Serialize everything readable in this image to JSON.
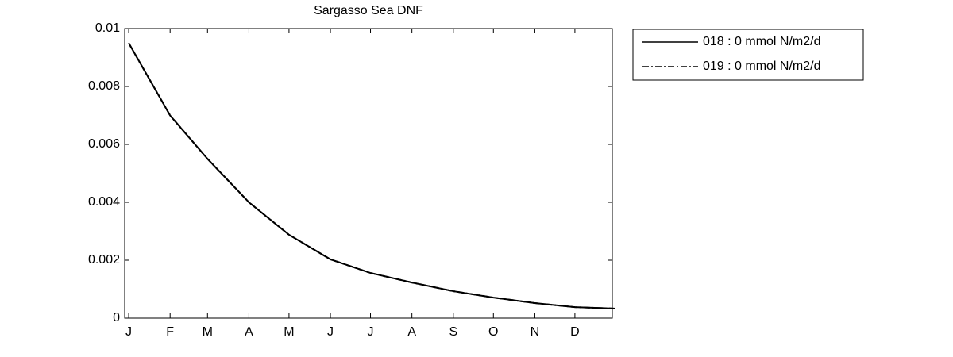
{
  "chart_data": {
    "type": "line",
    "title": "Sargasso Sea DNF",
    "x": [
      1,
      32,
      60,
      91,
      121,
      152,
      182,
      213,
      244,
      274,
      305,
      335,
      365
    ],
    "series": [
      {
        "name": "018 : 0 mmol N/m2/d",
        "color": "#000000",
        "dash": "solid",
        "values": [
          0.0095,
          0.007,
          0.0055,
          0.004,
          0.00288,
          0.00203,
          0.00156,
          0.00123,
          0.00093,
          0.00071,
          0.00052,
          0.00038,
          0.00033
        ]
      },
      {
        "name": "019 : 0 mmol N/m2/d",
        "color": "#000000",
        "dash": "dashdot",
        "values": [
          0.0095,
          0.007,
          0.0055,
          0.004,
          0.00288,
          0.00203,
          0.00156,
          0.00123,
          0.00093,
          0.00071,
          0.00052,
          0.00038,
          0.00033
        ]
      }
    ],
    "xlim": [
      -2,
      363
    ],
    "xticks": [
      {
        "value": 1,
        "label": "J"
      },
      {
        "value": 32,
        "label": "F"
      },
      {
        "value": 60,
        "label": "M"
      },
      {
        "value": 91,
        "label": "A"
      },
      {
        "value": 121,
        "label": "M"
      },
      {
        "value": 152,
        "label": "J"
      },
      {
        "value": 182,
        "label": "J"
      },
      {
        "value": 213,
        "label": "A"
      },
      {
        "value": 244,
        "label": "S"
      },
      {
        "value": 274,
        "label": "O"
      },
      {
        "value": 305,
        "label": "N"
      },
      {
        "value": 335,
        "label": "D"
      }
    ],
    "ylim": [
      0,
      0.01
    ],
    "yticks": [
      0,
      0.002,
      0.004,
      0.006,
      0.008,
      0.01
    ],
    "grid": false,
    "legend": "outside-right"
  }
}
